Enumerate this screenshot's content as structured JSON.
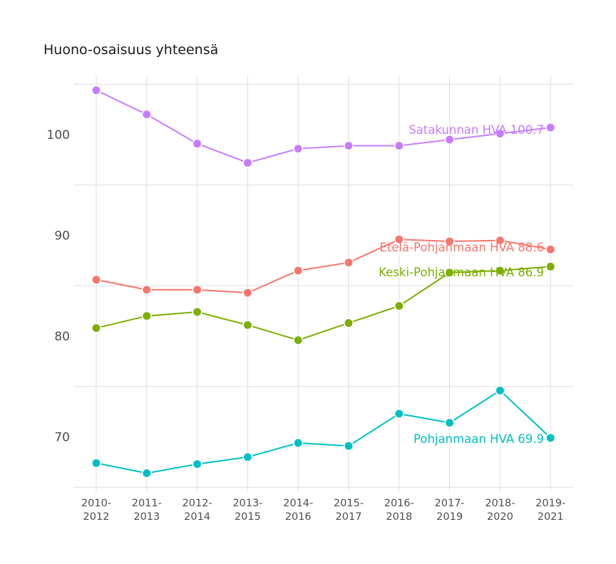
{
  "chart_data": {
    "type": "line",
    "title": "Huono-osaisuus yhteensä",
    "xlabel": "",
    "ylabel": "",
    "categories": [
      "2010-2012",
      "2011-2013",
      "2012-2014",
      "2013-2015",
      "2014-2016",
      "2015-2017",
      "2016-2018",
      "2017-2019",
      "2018-2020",
      "2019-2021"
    ],
    "ylim": [
      65,
      105.5
    ],
    "yticks": [
      70,
      80,
      90,
      100
    ],
    "grid": {
      "major_x": true,
      "minor_y": [
        65,
        75,
        85,
        95,
        105
      ]
    },
    "legend": "direct labels at last point",
    "series": [
      {
        "name": "Satakunnan HVA",
        "color": "#C77CFF",
        "label": "Satakunnan HVA 100.7",
        "values": [
          104.4,
          102.0,
          99.1,
          97.2,
          98.6,
          98.9,
          98.9,
          99.5,
          100.1,
          100.7
        ]
      },
      {
        "name": "Etelä-Pohjanmaan HVA",
        "color": "#F8766D",
        "label": "Etelä-Pohjanmaan HVA 88.6",
        "values": [
          85.6,
          84.6,
          84.6,
          84.3,
          86.5,
          87.3,
          89.6,
          89.4,
          89.5,
          88.6
        ]
      },
      {
        "name": "Keski-Pohjanmaan HVA",
        "color": "#7CAE00",
        "label": "Keski-Pohjanmaan HVA 86.9",
        "values": [
          80.8,
          82.0,
          82.4,
          81.1,
          79.6,
          81.3,
          83.0,
          86.3,
          86.5,
          86.9
        ]
      },
      {
        "name": "Pohjanmaan HVA",
        "color": "#00BFC4",
        "label": "Pohjanmaan HVA 69.9",
        "values": [
          67.4,
          66.4,
          67.3,
          68.0,
          69.4,
          69.1,
          72.3,
          71.4,
          74.6,
          69.9
        ]
      }
    ]
  }
}
